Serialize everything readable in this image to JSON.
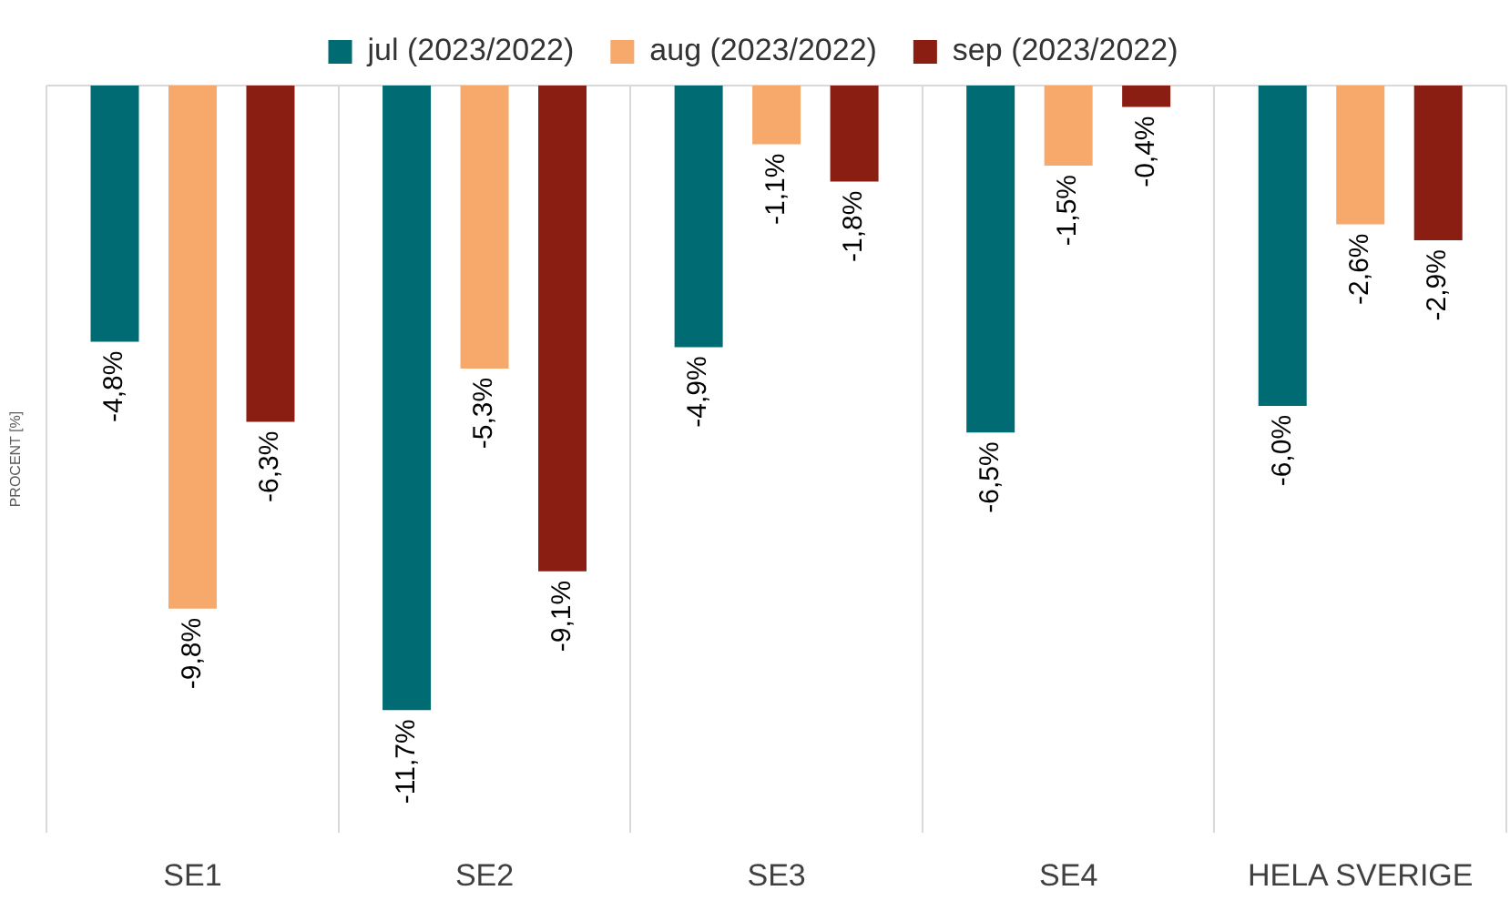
{
  "chart_data": {
    "type": "bar",
    "ylabel": "PROCENT [%]",
    "categories": [
      "SE1",
      "SE2",
      "SE3",
      "SE4",
      "HELA SVERIGE"
    ],
    "series": [
      {
        "name": "jul (2023/2022)",
        "color": "#006b73",
        "values": [
          -4.8,
          -11.7,
          -4.9,
          -6.5,
          -6.0
        ],
        "value_labels": [
          "-4,8%",
          "-11,7%",
          "-4,9%",
          "-6,5%",
          "-6,0%"
        ]
      },
      {
        "name": "aug (2023/2022)",
        "color": "#f6a96b",
        "values": [
          -9.8,
          -5.3,
          -1.1,
          -1.5,
          -2.6
        ],
        "value_labels": [
          "-9,8%",
          "-5,3%",
          "-1,1%",
          "-1,5%",
          "-2,6%"
        ]
      },
      {
        "name": "sep (2023/2022)",
        "color": "#8b1e12",
        "values": [
          -6.3,
          -9.1,
          -1.8,
          -0.4,
          -2.9
        ],
        "value_labels": [
          "-6,3%",
          "-9,1%",
          "-1,8%",
          "-0,4%",
          "-2,9%"
        ]
      }
    ],
    "ylim": [
      -14,
      0
    ],
    "grid": "x",
    "legend": "top",
    "tick_labels": "x"
  }
}
